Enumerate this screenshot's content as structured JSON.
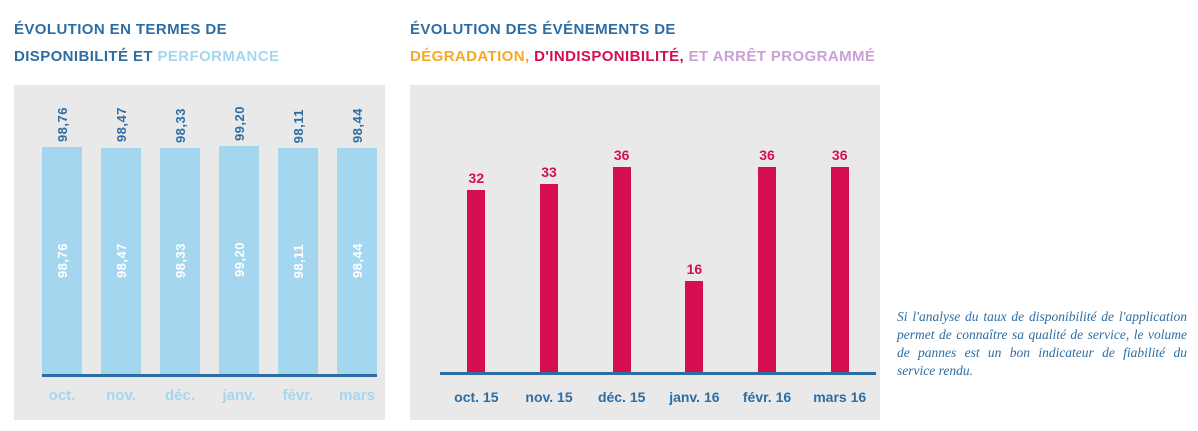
{
  "left": {
    "title_line1": "ÉVOLUTION EN TERMES DE",
    "title_line2_blue": "DISPONIBILITÉ ET",
    "title_line2_light": "PERFORMANCE"
  },
  "right": {
    "title_line1": "ÉVOLUTION DES ÉVÉNEMENTS DE",
    "title_orange": "DÉGRADATION,",
    "title_red": "D'INDISPONIBILITÉ,",
    "title_purple": "ET ARRÊT PROGRAMMÉ"
  },
  "annotation": "Si l'analyse du taux de disponibilité de l'application permet de connaître sa qualité de service, le volume de pannes est un bon indicateur de fiabilité du service rendu.",
  "colors": {
    "dark_blue": "#2d6da4",
    "light_blue": "#a4d7ef",
    "panel_gray": "#e9e9e9",
    "red": "#d50f4f",
    "orange": "#f7a823",
    "purple": "#cb9fd8",
    "bar_inner_text": "#ffffff"
  },
  "chart_data": [
    {
      "type": "bar",
      "title": "Évolution en termes de disponibilité et performance",
      "categories": [
        "oct.",
        "nov.",
        "déc.",
        "janv.",
        "févr.",
        "mars"
      ],
      "values": [
        98.76,
        98.47,
        98.33,
        99.2,
        98.11,
        98.44
      ],
      "value_labels": [
        "98,76",
        "98,47",
        "98,33",
        "99,20",
        "98,11",
        "98,44"
      ],
      "xlabel": "",
      "ylabel": "",
      "ylim": [
        0,
        100
      ],
      "grid": false,
      "legend": "none",
      "bar_color": "#a4d7ef",
      "value_label_orientation": "vertical",
      "value_label_positions": [
        "above bar",
        "inside bar center"
      ]
    },
    {
      "type": "bar",
      "title": "Évolution des événements de dégradation, d'indisponibilité, et arrêt programmé",
      "categories": [
        "oct. 15",
        "nov. 15",
        "déc. 15",
        "janv. 16",
        "févr. 16",
        "mars 16"
      ],
      "values": [
        32,
        33,
        36,
        16,
        36,
        36
      ],
      "value_labels": [
        "32",
        "33",
        "36",
        "16",
        "36",
        "36"
      ],
      "xlabel": "",
      "ylabel": "",
      "ylim": [
        0,
        40
      ],
      "grid": false,
      "legend": "none",
      "bar_color": "#d50f4f",
      "value_label_orientation": "horizontal",
      "value_label_positions": [
        "above bar"
      ]
    }
  ]
}
